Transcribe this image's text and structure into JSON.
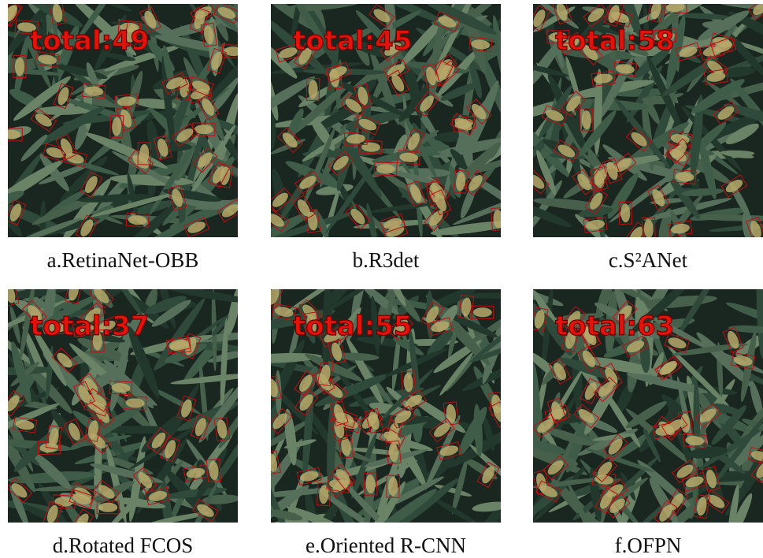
{
  "panels": [
    {
      "overlay": "total:49",
      "caption": "a.RetinaNet-OBB"
    },
    {
      "overlay": "total:45",
      "caption": "b.R3det"
    },
    {
      "overlay": "total:58",
      "caption": "c.S²ANet"
    },
    {
      "overlay": "total:37",
      "caption": "d.Rotated FCOS"
    },
    {
      "overlay": "total:55",
      "caption": "e.Oriented R-CNN"
    },
    {
      "overlay": "total:63",
      "caption": "f.OFPN"
    }
  ]
}
